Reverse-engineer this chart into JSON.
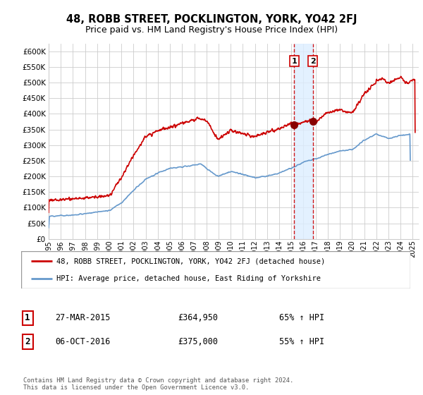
{
  "title": "48, ROBB STREET, POCKLINGTON, YORK, YO42 2FJ",
  "subtitle": "Price paid vs. HM Land Registry's House Price Index (HPI)",
  "ytick_values": [
    0,
    50000,
    100000,
    150000,
    200000,
    250000,
    300000,
    350000,
    400000,
    450000,
    500000,
    550000,
    600000
  ],
  "xlim_start": 1995.0,
  "xlim_end": 2025.5,
  "ylim_min": 0,
  "ylim_max": 625000,
  "red_line_color": "#cc0000",
  "blue_line_color": "#6699cc",
  "dashed_line_color": "#cc0000",
  "span_color": "#ddeeff",
  "marker1_date": 2015.23,
  "marker2_date": 2016.76,
  "marker1_value": 364950,
  "marker2_value": 375000,
  "transaction1_date": "27-MAR-2015",
  "transaction1_price": "£364,950",
  "transaction1_hpi": "65% ↑ HPI",
  "transaction2_date": "06-OCT-2016",
  "transaction2_price": "£375,000",
  "transaction2_hpi": "55% ↑ HPI",
  "legend1": "48, ROBB STREET, POCKLINGTON, YORK, YO42 2FJ (detached house)",
  "legend2": "HPI: Average price, detached house, East Riding of Yorkshire",
  "footer": "Contains HM Land Registry data © Crown copyright and database right 2024.\nThis data is licensed under the Open Government Licence v3.0.",
  "background_color": "#ffffff",
  "grid_color": "#cccccc"
}
